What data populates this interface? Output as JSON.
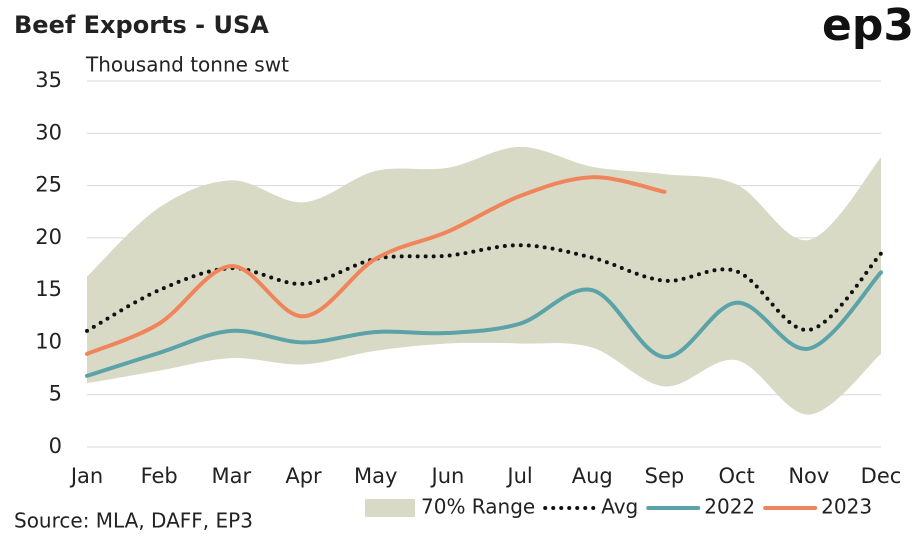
{
  "chart_data": {
    "type": "line",
    "title": "Beef Exports - USA",
    "brand": "ep3",
    "y_label": "Thousand tonne swt",
    "source": "Source: MLA, DAFF, EP3",
    "categories": [
      "Jan",
      "Feb",
      "Mar",
      "Apr",
      "May",
      "Jun",
      "Jul",
      "Aug",
      "Sep",
      "Oct",
      "Nov",
      "Dec"
    ],
    "ylim": [
      0,
      35
    ],
    "yticks": [
      0,
      5,
      10,
      15,
      20,
      25,
      30,
      35
    ],
    "grid": true,
    "series": [
      {
        "name": "70% Range",
        "color": "#d9dac6",
        "style": "band",
        "values": [
          16.3,
          22.9,
          25.5,
          23.4,
          26.4,
          26.7,
          28.7,
          26.8,
          26.1,
          25.1,
          19.8,
          27.7
        ],
        "lower": [
          6.1,
          7.3,
          8.5,
          7.9,
          9.2,
          9.9,
          9.9,
          9.5,
          5.8,
          8.3,
          3.1,
          8.9
        ]
      },
      {
        "name": "Avg",
        "color": "#111111",
        "style": "dotted",
        "values": [
          11.1,
          15.0,
          17.1,
          15.6,
          18.0,
          18.3,
          19.3,
          18.1,
          15.9,
          16.8,
          11.2,
          18.5
        ]
      },
      {
        "name": "2022",
        "color": "#5ba3a8",
        "style": "solid",
        "values": [
          6.8,
          9.0,
          11.1,
          10.0,
          11.0,
          10.9,
          11.8,
          15.0,
          8.6,
          13.8,
          9.4,
          16.7
        ]
      },
      {
        "name": "2023",
        "color": "#f0845a",
        "style": "solid",
        "values": [
          8.9,
          11.8,
          17.3,
          12.5,
          18.0,
          20.6,
          24.0,
          25.8,
          24.4,
          null,
          null,
          null
        ]
      }
    ]
  }
}
